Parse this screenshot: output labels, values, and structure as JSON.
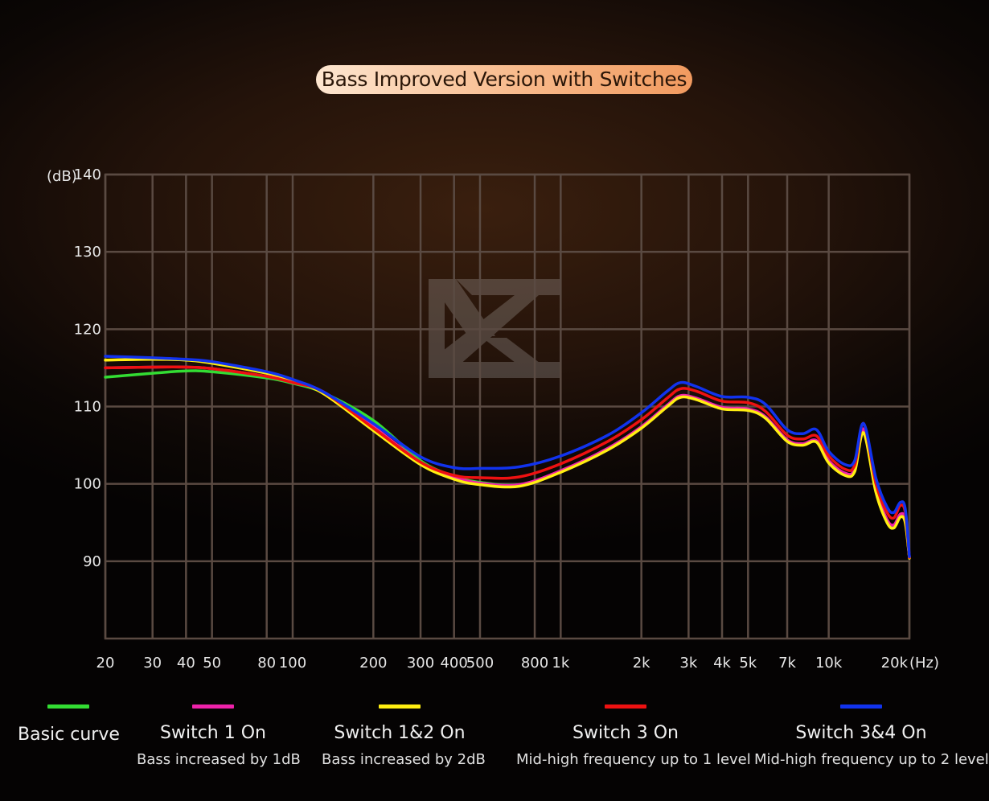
{
  "title": "Bass Improved Version with Switches",
  "colors": {
    "grid": "#5a4a42",
    "basic": "#33dd33",
    "switch1": "#ee22aa",
    "switch12": "#ffee11",
    "switch3": "#ee1111",
    "switch34": "#1133ee"
  },
  "chart_data": {
    "type": "line",
    "title": "Bass Improved Version with Switches",
    "ylabel": "(dB)",
    "xlabel": "(Hz)",
    "x_scale": "log",
    "xlim": [
      20,
      20000
    ],
    "ylim": [
      80,
      140
    ],
    "yticks": [
      90,
      100,
      110,
      120,
      130,
      140
    ],
    "xticks": [
      {
        "value": 20,
        "label": "20"
      },
      {
        "value": 30,
        "label": "30"
      },
      {
        "value": 40,
        "label": "40"
      },
      {
        "value": 50,
        "label": "50"
      },
      {
        "value": 80,
        "label": "80"
      },
      {
        "value": 100,
        "label": "100"
      },
      {
        "value": 200,
        "label": "200"
      },
      {
        "value": 300,
        "label": "300"
      },
      {
        "value": 400,
        "label": "400"
      },
      {
        "value": 500,
        "label": "500"
      },
      {
        "value": 800,
        "label": "800"
      },
      {
        "value": 1000,
        "label": "1k"
      },
      {
        "value": 2000,
        "label": "2k"
      },
      {
        "value": 3000,
        "label": "3k"
      },
      {
        "value": 4000,
        "label": "4k"
      },
      {
        "value": 5000,
        "label": "5k"
      },
      {
        "value": 7000,
        "label": "7k"
      },
      {
        "value": 10000,
        "label": "10k"
      },
      {
        "value": 20000,
        "label": "20k"
      }
    ],
    "grid": true,
    "legend_position": "bottom",
    "series": [
      {
        "name": "Basic curve",
        "description": "",
        "color": "#33dd33",
        "points": [
          [
            20,
            113.8
          ],
          [
            30,
            114.3
          ],
          [
            40,
            114.6
          ],
          [
            50,
            114.5
          ],
          [
            80,
            113.7
          ],
          [
            100,
            113.0
          ],
          [
            130,
            111.8
          ],
          [
            200,
            108.2
          ],
          [
            300,
            103.0
          ],
          [
            400,
            101.0
          ],
          [
            500,
            100.2
          ],
          [
            700,
            99.9
          ],
          [
            1000,
            101.6
          ],
          [
            1500,
            104.5
          ],
          [
            2000,
            107.3
          ],
          [
            2500,
            110.1
          ],
          [
            2800,
            111.3
          ],
          [
            3200,
            111.0
          ],
          [
            4000,
            109.8
          ],
          [
            5000,
            109.6
          ],
          [
            5800,
            108.6
          ],
          [
            7000,
            105.6
          ],
          [
            8000,
            105.1
          ],
          [
            9000,
            105.5
          ],
          [
            10000,
            102.9
          ],
          [
            11500,
            101.3
          ],
          [
            12500,
            101.8
          ],
          [
            13500,
            107.0
          ],
          [
            15000,
            99.2
          ],
          [
            16500,
            95.3
          ],
          [
            17500,
            94.6
          ],
          [
            18500,
            96.0
          ],
          [
            19300,
            95.3
          ],
          [
            20000,
            90.5
          ]
        ]
      },
      {
        "name": "Switch 1 On",
        "description": "Bass increased by 1dB",
        "color": "#ee22aa",
        "points": [
          [
            20,
            115.0
          ],
          [
            30,
            115.1
          ],
          [
            40,
            115.1
          ],
          [
            50,
            114.9
          ],
          [
            80,
            113.9
          ],
          [
            100,
            113.1
          ],
          [
            130,
            111.9
          ],
          [
            200,
            107.4
          ],
          [
            300,
            102.8
          ],
          [
            400,
            100.9
          ],
          [
            500,
            100.1
          ],
          [
            700,
            99.9
          ],
          [
            1000,
            101.7
          ],
          [
            1500,
            104.6
          ],
          [
            2000,
            107.4
          ],
          [
            2500,
            110.2
          ],
          [
            2800,
            111.4
          ],
          [
            3200,
            111.1
          ],
          [
            4000,
            109.9
          ],
          [
            5000,
            109.7
          ],
          [
            5800,
            108.7
          ],
          [
            7000,
            105.7
          ],
          [
            8000,
            105.2
          ],
          [
            9000,
            105.6
          ],
          [
            10000,
            103.0
          ],
          [
            11500,
            101.4
          ],
          [
            12500,
            101.9
          ],
          [
            13500,
            107.1
          ],
          [
            15000,
            99.3
          ],
          [
            16500,
            95.4
          ],
          [
            17500,
            94.7
          ],
          [
            18500,
            96.1
          ],
          [
            19300,
            95.4
          ],
          [
            20000,
            90.5
          ]
        ]
      },
      {
        "name": "Switch 1&2 On",
        "description": "Bass increased by 2dB",
        "color": "#ffee11",
        "points": [
          [
            20,
            116.0
          ],
          [
            30,
            116.1
          ],
          [
            40,
            116.0
          ],
          [
            50,
            115.6
          ],
          [
            80,
            114.3
          ],
          [
            100,
            113.3
          ],
          [
            130,
            111.7
          ],
          [
            200,
            106.9
          ],
          [
            300,
            102.5
          ],
          [
            400,
            100.6
          ],
          [
            500,
            99.9
          ],
          [
            700,
            99.7
          ],
          [
            1000,
            101.5
          ],
          [
            1500,
            104.4
          ],
          [
            2000,
            107.2
          ],
          [
            2500,
            110.0
          ],
          [
            2800,
            111.2
          ],
          [
            3200,
            110.9
          ],
          [
            4000,
            109.7
          ],
          [
            5000,
            109.5
          ],
          [
            5800,
            108.5
          ],
          [
            7000,
            105.5
          ],
          [
            8000,
            105.0
          ],
          [
            9000,
            105.4
          ],
          [
            10000,
            102.7
          ],
          [
            11500,
            101.1
          ],
          [
            12500,
            101.6
          ],
          [
            13500,
            106.6
          ],
          [
            15000,
            98.9
          ],
          [
            16500,
            95.0
          ],
          [
            17500,
            94.3
          ],
          [
            18500,
            95.7
          ],
          [
            19300,
            95.0
          ],
          [
            20000,
            90.4
          ]
        ]
      },
      {
        "name": "Switch 3 On",
        "description": "Mid-high frequency up to 1 level",
        "color": "#ee1111",
        "points": [
          [
            20,
            115.0
          ],
          [
            30,
            115.1
          ],
          [
            40,
            115.1
          ],
          [
            50,
            114.9
          ],
          [
            80,
            113.9
          ],
          [
            100,
            113.1
          ],
          [
            130,
            111.9
          ],
          [
            200,
            107.2
          ],
          [
            300,
            102.8
          ],
          [
            400,
            101.1
          ],
          [
            500,
            100.8
          ],
          [
            700,
            100.9
          ],
          [
            1000,
            102.6
          ],
          [
            1500,
            105.5
          ],
          [
            2000,
            108.3
          ],
          [
            2500,
            111.1
          ],
          [
            2800,
            112.3
          ],
          [
            3200,
            112.0
          ],
          [
            4000,
            110.7
          ],
          [
            5000,
            110.5
          ],
          [
            5800,
            109.4
          ],
          [
            7000,
            106.3
          ],
          [
            8000,
            105.8
          ],
          [
            9000,
            106.2
          ],
          [
            10000,
            103.6
          ],
          [
            11500,
            101.9
          ],
          [
            12500,
            102.4
          ],
          [
            13500,
            107.8
          ],
          [
            15000,
            100.0
          ],
          [
            16500,
            96.3
          ],
          [
            17500,
            95.6
          ],
          [
            18500,
            97.2
          ],
          [
            19300,
            96.3
          ],
          [
            20000,
            90.5
          ]
        ]
      },
      {
        "name": "Switch 3&4 On",
        "description": "Mid-high frequency up to 2 level",
        "color": "#1133ee",
        "points": [
          [
            20,
            116.5
          ],
          [
            30,
            116.3
          ],
          [
            40,
            116.1
          ],
          [
            50,
            115.8
          ],
          [
            80,
            114.5
          ],
          [
            100,
            113.5
          ],
          [
            130,
            111.9
          ],
          [
            200,
            107.8
          ],
          [
            300,
            103.5
          ],
          [
            400,
            102.1
          ],
          [
            500,
            102.0
          ],
          [
            700,
            102.2
          ],
          [
            1000,
            103.6
          ],
          [
            1500,
            106.3
          ],
          [
            2000,
            109.2
          ],
          [
            2500,
            112.0
          ],
          [
            2800,
            113.1
          ],
          [
            3200,
            112.6
          ],
          [
            4000,
            111.3
          ],
          [
            5000,
            111.2
          ],
          [
            5800,
            110.3
          ],
          [
            7000,
            107.0
          ],
          [
            8000,
            106.5
          ],
          [
            9000,
            107.0
          ],
          [
            10000,
            104.2
          ],
          [
            11500,
            102.5
          ],
          [
            12500,
            103.0
          ],
          [
            13500,
            107.8
          ],
          [
            15000,
            100.7
          ],
          [
            16500,
            97.0
          ],
          [
            17500,
            96.3
          ],
          [
            18500,
            97.6
          ],
          [
            19300,
            96.8
          ],
          [
            20000,
            90.6
          ]
        ]
      }
    ]
  }
}
